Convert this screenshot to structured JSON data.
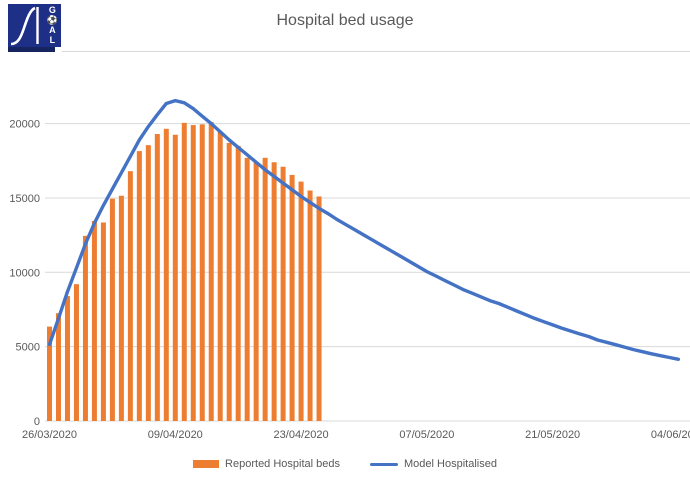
{
  "header": {
    "title": "Hospital bed usage",
    "logo": {
      "lines": [
        "G",
        "⚽",
        "A",
        "L"
      ]
    }
  },
  "colors": {
    "bar_orange": "#ED7D31",
    "line_blue": "#4472C4",
    "grid_gray": "#D9D9D9",
    "text_gray": "#595959",
    "logo_navy": "#1e2f87"
  },
  "chart_data": {
    "type": "combo",
    "title": "Hospital bed usage",
    "xlabel": "",
    "ylabel": "",
    "grid": true,
    "legend_position": "bottom",
    "y_axis": {
      "ticks": [
        0,
        5000,
        10000,
        15000,
        20000
      ],
      "ylim": [
        0,
        22500
      ]
    },
    "x_axis": {
      "start_date": "26/03/2020",
      "tick_days": [
        0,
        14,
        28,
        42,
        56,
        70
      ],
      "tick_labels": [
        "26/03/2020",
        "09/04/2020",
        "23/04/2020",
        "07/05/2020",
        "21/05/2020",
        "04/06/2020"
      ]
    },
    "series": [
      {
        "name": "Reported Hospital beds",
        "type": "bar",
        "color": "#ED7D31",
        "dates": [
          "26/03/2020",
          "27/03/2020",
          "28/03/2020",
          "29/03/2020",
          "30/03/2020",
          "31/03/2020",
          "01/04/2020",
          "02/04/2020",
          "03/04/2020",
          "04/04/2020",
          "05/04/2020",
          "06/04/2020",
          "07/04/2020",
          "08/04/2020",
          "09/04/2020",
          "10/04/2020",
          "11/04/2020",
          "12/04/2020",
          "13/04/2020",
          "14/04/2020",
          "15/04/2020",
          "16/04/2020",
          "17/04/2020",
          "18/04/2020",
          "19/04/2020",
          "20/04/2020",
          "21/04/2020",
          "22/04/2020",
          "23/04/2020",
          "24/04/2020",
          "25/04/2020"
        ],
        "values": [
          6350,
          7250,
          8400,
          9200,
          12450,
          13450,
          13350,
          14950,
          15150,
          16800,
          18150,
          18550,
          19300,
          19650,
          19250,
          20050,
          19900,
          19950,
          20100,
          19450,
          18700,
          18500,
          17700,
          17400,
          17700,
          17400,
          17100,
          16550,
          16100,
          15500,
          15100
        ]
      },
      {
        "name": "Model Hospitalised",
        "type": "line",
        "color": "#4472C4",
        "start_date": "26/03/2020",
        "interval": "daily",
        "values": [
          5150,
          6900,
          8700,
          10300,
          11900,
          13300,
          14500,
          15600,
          16700,
          17800,
          18900,
          19800,
          20600,
          21350,
          21550,
          21400,
          21000,
          20500,
          20000,
          19450,
          18900,
          18400,
          17900,
          17400,
          16900,
          16450,
          16000,
          15550,
          15100,
          14700,
          14300,
          13950,
          13550,
          13200,
          12850,
          12500,
          12150,
          11800,
          11450,
          11100,
          10750,
          10400,
          10050,
          9750,
          9450,
          9150,
          8850,
          8600,
          8350,
          8100,
          7900,
          7650,
          7400,
          7150,
          6900,
          6680,
          6460,
          6250,
          6050,
          5860,
          5680,
          5450,
          5290,
          5130,
          4970,
          4800,
          4660,
          4520,
          4390,
          4270,
          4150
        ]
      }
    ]
  }
}
